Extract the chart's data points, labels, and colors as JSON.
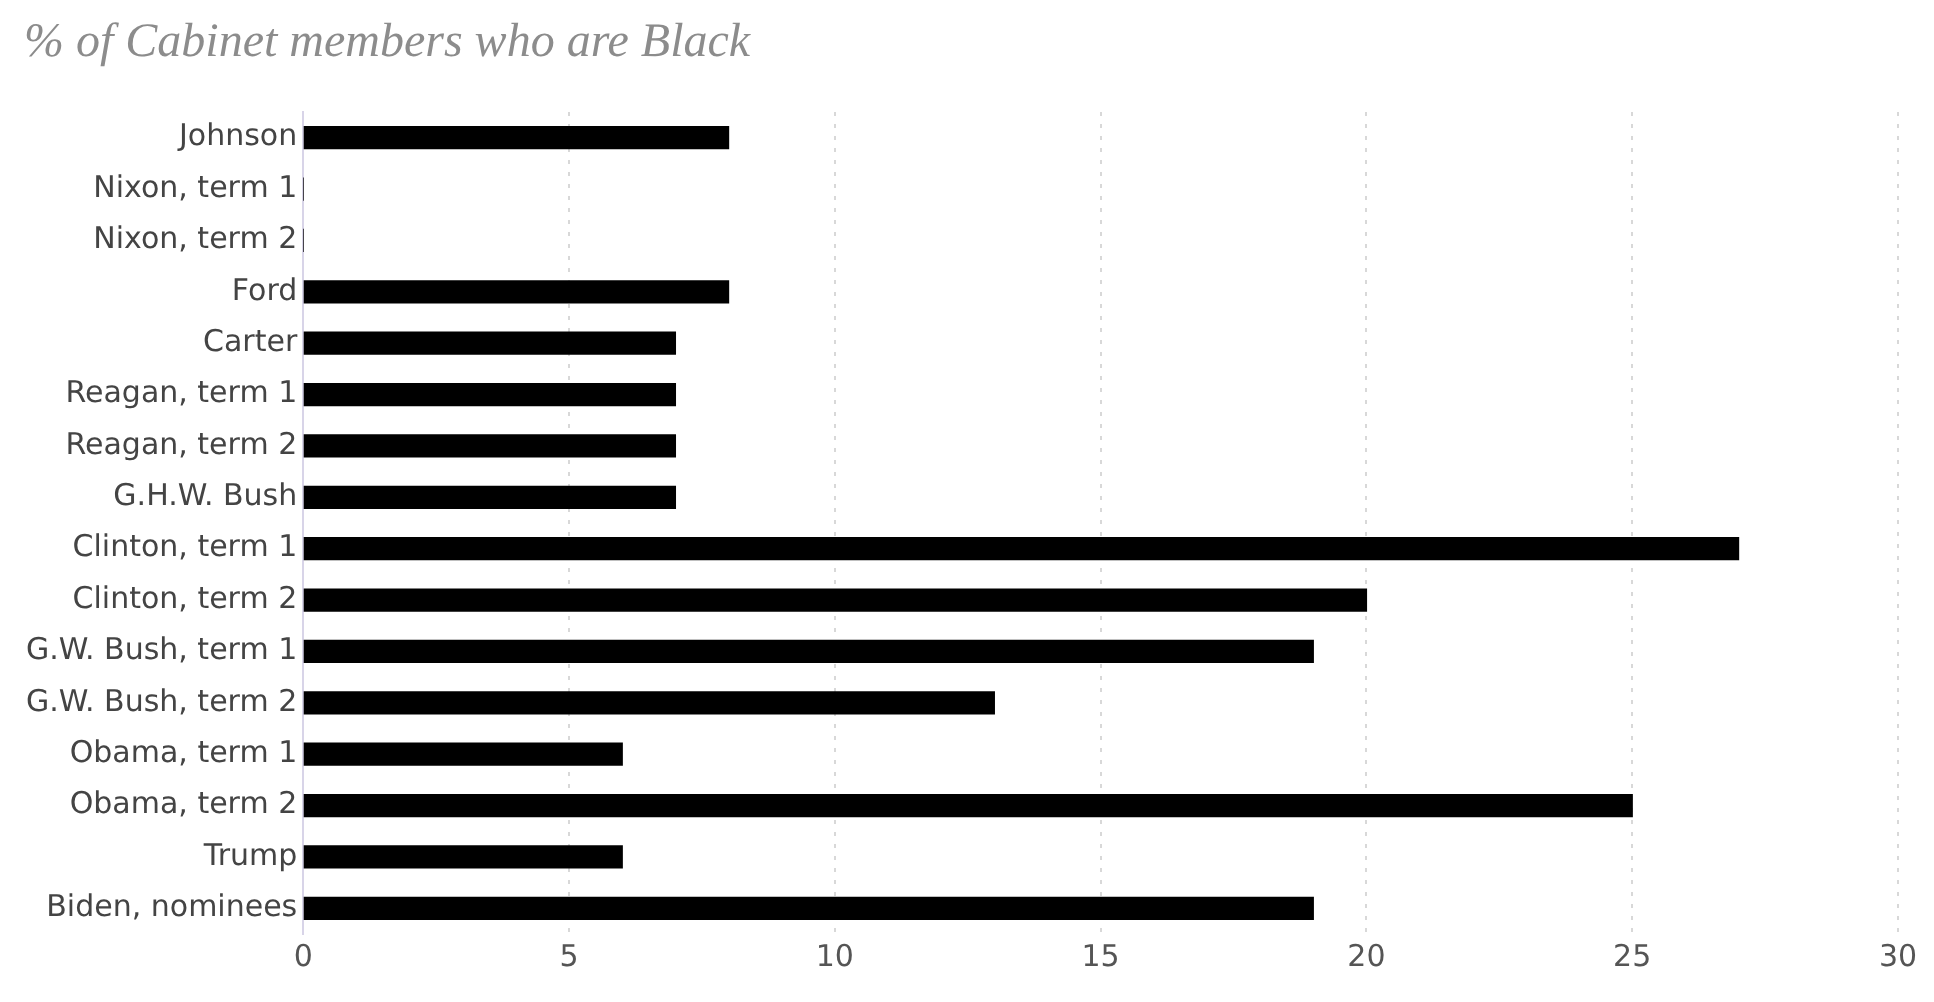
{
  "chart_data": {
    "type": "bar",
    "orientation": "horizontal",
    "title": "% of Cabinet members who are Black",
    "categories": [
      "Johnson",
      "Nixon, term 1",
      "Nixon, term 2",
      "Ford",
      "Carter",
      "Reagan, term 1",
      "Reagan, term 2",
      "G.H.W. Bush",
      "Clinton, term 1",
      "Clinton, term 2",
      "G.W. Bush, term 1",
      "G.W. Bush, term 2",
      "Obama, term 1",
      "Obama, term 2",
      "Trump",
      "Biden, nominees"
    ],
    "values": [
      8,
      0,
      0,
      8,
      7,
      7,
      7,
      7,
      27,
      20,
      19,
      13,
      6,
      25,
      6,
      19
    ],
    "color": "#000000",
    "xlim": [
      0,
      30
    ],
    "xticks": [
      0,
      5,
      10,
      15,
      20,
      25,
      30
    ],
    "grid": "x",
    "legend": false
  }
}
